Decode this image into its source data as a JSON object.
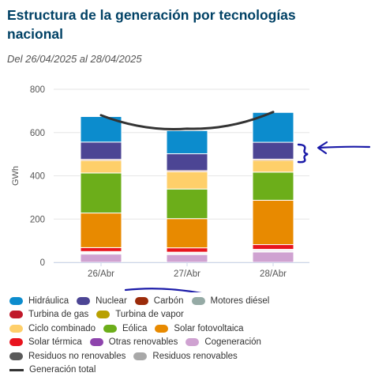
{
  "header": {
    "title": "Estructura de la generación por tecnologías nacional",
    "subtitle": "Del 26/04/2025 al 28/04/2025"
  },
  "chart_data": {
    "type": "bar",
    "stacked": true,
    "title": "Estructura de la generación por tecnologías nacional",
    "subtitle": "Del 26/04/2025 al 28/04/2025",
    "ylabel": "GWh",
    "ylim": [
      0,
      800
    ],
    "yticks": [
      0,
      200,
      400,
      600,
      800
    ],
    "grid": true,
    "legend_position": "bottom",
    "categories": [
      "26/Abr",
      "27/Abr",
      "28/Abr"
    ],
    "series": [
      {
        "name": "Cogeneración",
        "color": "#cfa2d1",
        "values": [
          38,
          36,
          48
        ]
      },
      {
        "name": "Residuos renovables",
        "color": "#a8a8a8",
        "values": [
          4,
          4,
          4
        ]
      },
      {
        "name": "Residuos no renovables",
        "color": "#5a5a5a",
        "values": [
          4,
          4,
          4
        ]
      },
      {
        "name": "Otras renovables",
        "color": "#8e44ad",
        "values": [
          4,
          3,
          4
        ]
      },
      {
        "name": "Solar térmica",
        "color": "#e8141e",
        "values": [
          18,
          20,
          22
        ]
      },
      {
        "name": "Turbina de gas",
        "color": "#c0192a",
        "values": [
          0,
          0,
          0
        ]
      },
      {
        "name": "Solar fotovoltaica",
        "color": "#e88a00",
        "values": [
          160,
          135,
          205
        ]
      },
      {
        "name": "Eólica",
        "color": "#6cae1a",
        "values": [
          185,
          137,
          130
        ]
      },
      {
        "name": "Ciclo combinado",
        "color": "#fecf6a",
        "values": [
          58,
          80,
          55
        ]
      },
      {
        "name": "Turbina de vapor",
        "color": "#b8a000",
        "values": [
          0,
          0,
          0
        ]
      },
      {
        "name": "Motores diésel",
        "color": "#95aaa5",
        "values": [
          0,
          0,
          0
        ]
      },
      {
        "name": "Carbón",
        "color": "#9b2b0a",
        "values": [
          5,
          5,
          5
        ]
      },
      {
        "name": "Nuclear",
        "color": "#4c4594",
        "values": [
          80,
          78,
          78
        ]
      },
      {
        "name": "Hidráulica",
        "color": "#0c8ccd",
        "values": [
          118,
          107,
          138
        ]
      }
    ],
    "line_series": {
      "name": "Generación total",
      "color": "#333333",
      "values": [
        680,
        618,
        695
      ]
    }
  },
  "legend": {
    "rows": [
      [
        {
          "label": "Hidráulica",
          "color": "#0c8ccd"
        },
        {
          "label": "Nuclear",
          "color": "#4c4594"
        },
        {
          "label": "Carbón",
          "color": "#9b2b0a"
        },
        {
          "label": "Motores diésel",
          "color": "#95aaa5"
        }
      ],
      [
        {
          "label": "Turbina de gas",
          "color": "#c0192a"
        },
        {
          "label": "Turbina de vapor",
          "color": "#b8a000"
        }
      ],
      [
        {
          "label": "Ciclo combinado",
          "color": "#fecf6a"
        },
        {
          "label": "Eólica",
          "color": "#6cae1a"
        },
        {
          "label": "Solar fotovoltaica",
          "color": "#e88a00"
        }
      ],
      [
        {
          "label": "Solar térmica",
          "color": "#e8141e"
        },
        {
          "label": "Otras renovables",
          "color": "#8e44ad"
        },
        {
          "label": "Cogeneración",
          "color": "#cfa2d1"
        }
      ],
      [
        {
          "label": "Residuos no renovables",
          "color": "#5a5a5a"
        },
        {
          "label": "Residuos renovables",
          "color": "#a8a8a8"
        }
      ],
      [
        {
          "label": "Generación total",
          "color": "#333333",
          "line": true
        }
      ]
    ]
  },
  "annotations": {
    "color": "#1a1aa8"
  }
}
